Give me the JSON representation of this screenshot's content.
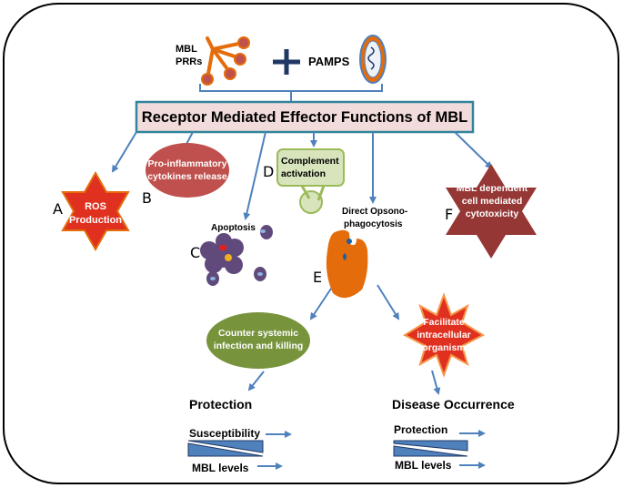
{
  "inputs": {
    "mbl": [
      "MBL",
      "PRRs"
    ],
    "plus": "+",
    "pamps": "PAMPS"
  },
  "title": "Receptor Mediated Effector Functions of MBL",
  "effectors": {
    "A": {
      "letter": "A",
      "lines": [
        "ROS",
        "Production"
      ]
    },
    "B": {
      "letter": "B",
      "lines": [
        "Pro-inflammatory",
        "cytokines release"
      ]
    },
    "C": {
      "letter": "C",
      "label": "Apoptosis"
    },
    "D": {
      "letter": "D",
      "lines": [
        "Complement",
        "activation"
      ]
    },
    "E": {
      "letter": "E",
      "lines": [
        "Direct Opsono-",
        "phagocytosis"
      ]
    },
    "F": {
      "letter": "F",
      "lines": [
        "MBL dependent",
        "cell mediated",
        "cytotoxicity"
      ]
    }
  },
  "outcomes": {
    "good": {
      "lines": [
        "Counter systemic",
        "infection and killing"
      ],
      "result": "Protection",
      "top": "Susceptibility",
      "bottom": "MBL levels"
    },
    "bad": {
      "lines": [
        "Facilitate",
        "intracellular",
        "organism"
      ],
      "result": "Disease Occurrence",
      "top": "Protection",
      "bottom": "MBL levels"
    }
  },
  "colors": {
    "arrow": "#4f81bd",
    "title_fill": "#f2dcdb",
    "title_border": "#31859c",
    "ros": "#e03020",
    "cytokine": "#c0504d",
    "complement": "#d7e4bc",
    "apoptosis": "#604a7b",
    "phago": "#e46c0a",
    "cytotox": "#953735",
    "counter": "#77933c"
  }
}
